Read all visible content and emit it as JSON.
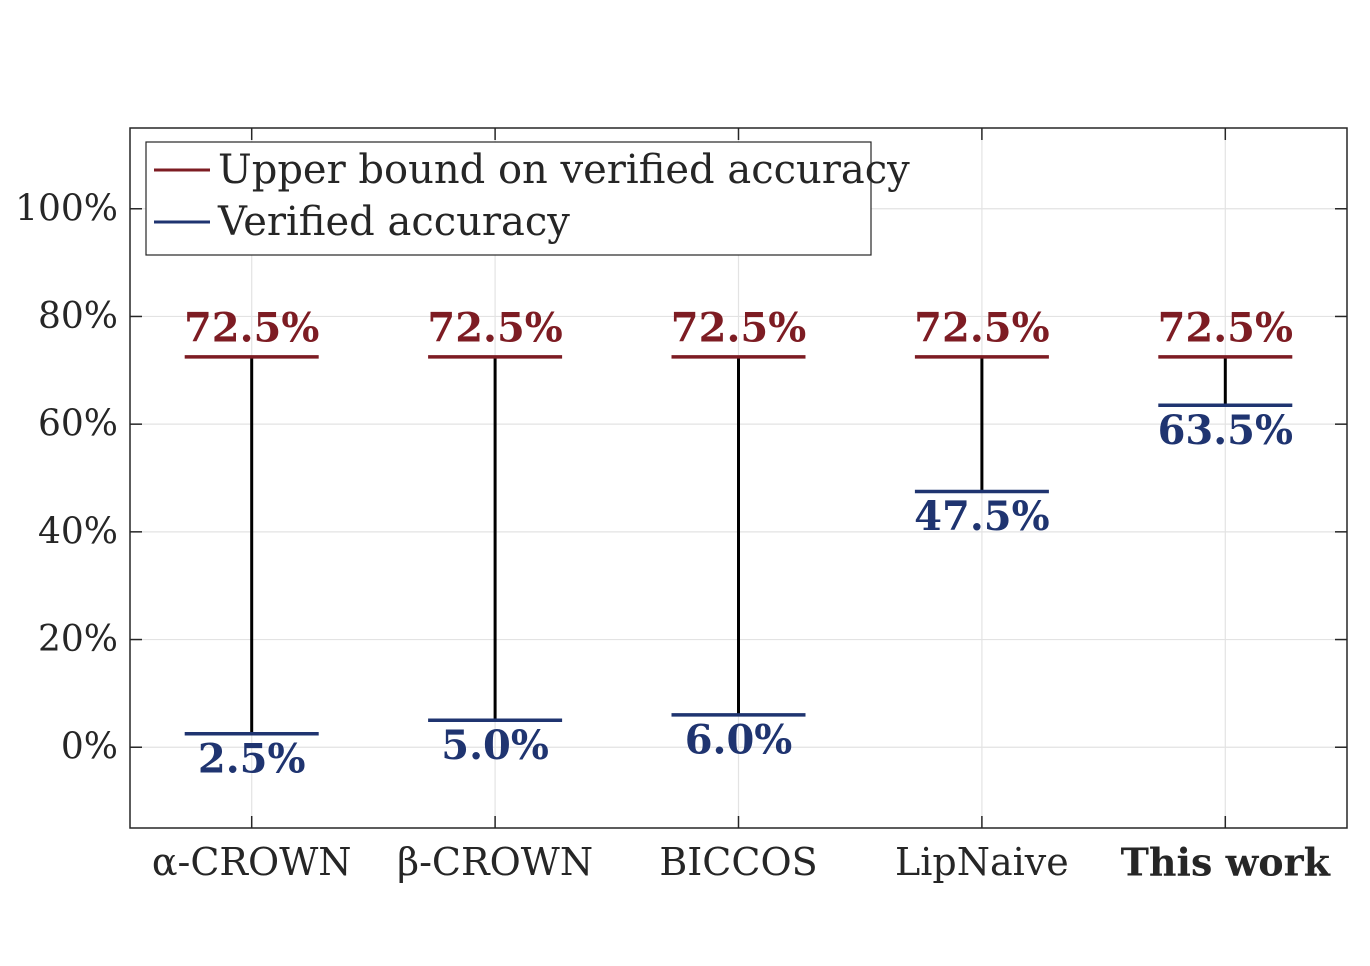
{
  "chart_data": {
    "type": "bar",
    "chart_style": "range-with-bounds",
    "categories": [
      "α-CROWN",
      "β-CROWN",
      "BICCOS",
      "LipNaive",
      "This work"
    ],
    "bold_categories": [
      "This work"
    ],
    "series": [
      {
        "name": "Upper bound on verified accuracy",
        "color": "#7d1c23",
        "values": [
          72.5,
          72.5,
          72.5,
          72.5,
          72.5
        ],
        "labels": [
          "72.5%",
          "72.5%",
          "72.5%",
          "72.5%",
          "72.5%"
        ]
      },
      {
        "name": "Verified accuracy",
        "color": "#1f3470",
        "values": [
          2.5,
          5.0,
          6.0,
          47.5,
          63.5
        ],
        "labels": [
          "2.5%",
          "5.0%",
          "6.0%",
          "47.5%",
          "63.5%"
        ]
      }
    ],
    "connector_color": "#000000",
    "ylim": [
      -15,
      115
    ],
    "yticks": [
      0,
      20,
      40,
      60,
      80,
      100
    ],
    "ytick_labels": [
      "0%",
      "20%",
      "40%",
      "60%",
      "80%",
      "100%"
    ],
    "grid": true,
    "legend_position": "top-left",
    "xlabel": "",
    "ylabel": "",
    "title": ""
  }
}
